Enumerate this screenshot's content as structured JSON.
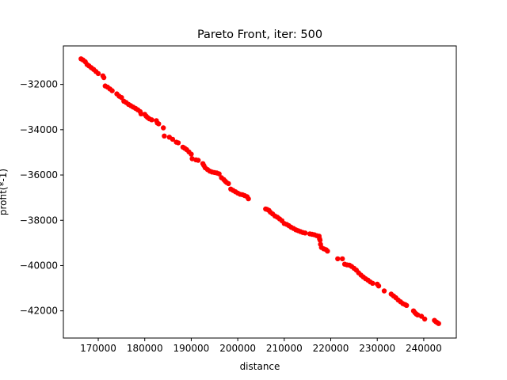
{
  "chart_data": {
    "type": "scatter",
    "title": "Pareto Front, iter: 500",
    "xlabel": "distance",
    "ylabel": "profit(*-1)",
    "xlim": [
      162500,
      247000
    ],
    "ylim": [
      -43200,
      -30300
    ],
    "xticks": [
      {
        "value": 170000,
        "label": "170000"
      },
      {
        "value": 180000,
        "label": "180000"
      },
      {
        "value": 190000,
        "label": "190000"
      },
      {
        "value": 200000,
        "label": "200000"
      },
      {
        "value": 210000,
        "label": "210000"
      },
      {
        "value": 220000,
        "label": "220000"
      },
      {
        "value": 230000,
        "label": "230000"
      },
      {
        "value": 240000,
        "label": "240000"
      }
    ],
    "yticks": [
      {
        "value": -32000,
        "label": "−32000"
      },
      {
        "value": -34000,
        "label": "−34000"
      },
      {
        "value": -36000,
        "label": "−36000"
      },
      {
        "value": -38000,
        "label": "−38000"
      },
      {
        "value": -40000,
        "label": "−40000"
      },
      {
        "value": -42000,
        "label": "−42000"
      }
    ],
    "grid": false,
    "marker_color": "#ff0000",
    "points": [
      [
        166300,
        -30870
      ],
      [
        166700,
        -30920
      ],
      [
        167200,
        -31000
      ],
      [
        167600,
        -31120
      ],
      [
        168000,
        -31180
      ],
      [
        168500,
        -31260
      ],
      [
        169000,
        -31340
      ],
      [
        169500,
        -31430
      ],
      [
        170000,
        -31520
      ],
      [
        171000,
        -31620
      ],
      [
        171200,
        -31700
      ],
      [
        171500,
        -32070
      ],
      [
        172000,
        -32120
      ],
      [
        172500,
        -32200
      ],
      [
        173000,
        -32280
      ],
      [
        174000,
        -32420
      ],
      [
        174500,
        -32520
      ],
      [
        175000,
        -32580
      ],
      [
        175500,
        -32740
      ],
      [
        176000,
        -32800
      ],
      [
        176500,
        -32880
      ],
      [
        177000,
        -32940
      ],
      [
        177500,
        -33000
      ],
      [
        178000,
        -33060
      ],
      [
        178500,
        -33120
      ],
      [
        179000,
        -33200
      ],
      [
        179200,
        -33300
      ],
      [
        180000,
        -33320
      ],
      [
        180300,
        -33400
      ],
      [
        180600,
        -33460
      ],
      [
        181000,
        -33520
      ],
      [
        181500,
        -33560
      ],
      [
        182500,
        -33600
      ],
      [
        182700,
        -33700
      ],
      [
        183000,
        -33740
      ],
      [
        184000,
        -33920
      ],
      [
        184200,
        -34280
      ],
      [
        185300,
        -34330
      ],
      [
        186000,
        -34420
      ],
      [
        186800,
        -34550
      ],
      [
        187200,
        -34580
      ],
      [
        188200,
        -34770
      ],
      [
        188600,
        -34820
      ],
      [
        189000,
        -34880
      ],
      [
        189500,
        -34980
      ],
      [
        190000,
        -35080
      ],
      [
        190200,
        -35280
      ],
      [
        191000,
        -35330
      ],
      [
        191500,
        -35350
      ],
      [
        192500,
        -35500
      ],
      [
        192700,
        -35580
      ],
      [
        193000,
        -35680
      ],
      [
        193500,
        -35760
      ],
      [
        194000,
        -35830
      ],
      [
        194500,
        -35870
      ],
      [
        195000,
        -35890
      ],
      [
        195500,
        -35910
      ],
      [
        196000,
        -35950
      ],
      [
        196500,
        -36120
      ],
      [
        197000,
        -36200
      ],
      [
        197300,
        -36270
      ],
      [
        197600,
        -36330
      ],
      [
        198000,
        -36380
      ],
      [
        198500,
        -36620
      ],
      [
        199000,
        -36680
      ],
      [
        199500,
        -36740
      ],
      [
        200000,
        -36800
      ],
      [
        200500,
        -36850
      ],
      [
        201000,
        -36870
      ],
      [
        201500,
        -36910
      ],
      [
        202000,
        -36960
      ],
      [
        202300,
        -37050
      ],
      [
        206000,
        -37500
      ],
      [
        206300,
        -37520
      ],
      [
        206700,
        -37560
      ],
      [
        207000,
        -37640
      ],
      [
        207500,
        -37720
      ],
      [
        208000,
        -37810
      ],
      [
        208500,
        -37860
      ],
      [
        209000,
        -37940
      ],
      [
        209500,
        -38020
      ],
      [
        210000,
        -38140
      ],
      [
        210500,
        -38180
      ],
      [
        211000,
        -38240
      ],
      [
        211500,
        -38310
      ],
      [
        212000,
        -38360
      ],
      [
        212500,
        -38420
      ],
      [
        213000,
        -38460
      ],
      [
        213500,
        -38500
      ],
      [
        214000,
        -38540
      ],
      [
        214500,
        -38560
      ],
      [
        215500,
        -38600
      ],
      [
        216000,
        -38620
      ],
      [
        216500,
        -38640
      ],
      [
        217000,
        -38680
      ],
      [
        217500,
        -38700
      ],
      [
        217600,
        -38820
      ],
      [
        217700,
        -38880
      ],
      [
        217800,
        -39060
      ],
      [
        218000,
        -39200
      ],
      [
        218500,
        -39260
      ],
      [
        219000,
        -39300
      ],
      [
        219300,
        -39360
      ],
      [
        221500,
        -39700
      ],
      [
        222500,
        -39700
      ],
      [
        223000,
        -39940
      ],
      [
        223500,
        -39970
      ],
      [
        224000,
        -39980
      ],
      [
        224500,
        -40040
      ],
      [
        225000,
        -40120
      ],
      [
        225500,
        -40200
      ],
      [
        226000,
        -40320
      ],
      [
        226500,
        -40420
      ],
      [
        227000,
        -40500
      ],
      [
        227500,
        -40580
      ],
      [
        228000,
        -40640
      ],
      [
        228500,
        -40720
      ],
      [
        229000,
        -40780
      ],
      [
        230000,
        -40820
      ],
      [
        230300,
        -40900
      ],
      [
        231500,
        -41120
      ],
      [
        233000,
        -41260
      ],
      [
        233500,
        -41340
      ],
      [
        234000,
        -41420
      ],
      [
        234500,
        -41520
      ],
      [
        235000,
        -41600
      ],
      [
        235500,
        -41680
      ],
      [
        236000,
        -41720
      ],
      [
        236300,
        -41760
      ],
      [
        237800,
        -42000
      ],
      [
        238100,
        -42080
      ],
      [
        238400,
        -42140
      ],
      [
        238700,
        -42180
      ],
      [
        239500,
        -42240
      ],
      [
        240200,
        -42360
      ],
      [
        242300,
        -42420
      ],
      [
        242600,
        -42480
      ],
      [
        242900,
        -42520
      ],
      [
        243200,
        -42560
      ]
    ]
  }
}
